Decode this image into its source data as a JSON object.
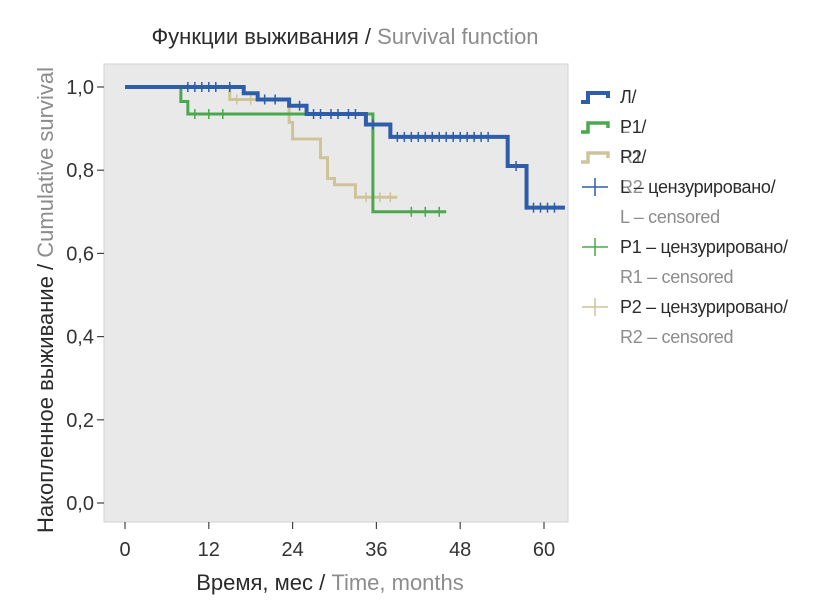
{
  "title": {
    "main": "Функции выживания / ",
    "secondary": "Survival function"
  },
  "x_axis_label": {
    "main": "Время, мес / ",
    "secondary": "Time, months"
  },
  "y_axis_label": {
    "main": "Накопленное выживание / ",
    "secondary": "Cumulative survival"
  },
  "legend": [
    {
      "main": "Л/",
      "secondary": "L",
      "color": "#2e5da9",
      "kind": "line"
    },
    {
      "main": "Р1/",
      "secondary": "R1",
      "color": "#4aa84d",
      "kind": "line"
    },
    {
      "main": "Р2/",
      "secondary": "R2",
      "color": "#cfc39a",
      "kind": "line"
    },
    {
      "main": "L – цензурировано/",
      "secondary": "L – censored",
      "color": "#2e5da9",
      "kind": "censor"
    },
    {
      "main": "P1 – цензурировано/",
      "secondary": "R1 – censored",
      "color": "#4aa84d",
      "kind": "censor"
    },
    {
      "main": "P2 – цензурировано/",
      "secondary": "R2 – censored",
      "color": "#cfc39a",
      "kind": "censor"
    }
  ],
  "chart_data": {
    "type": "line",
    "subtype": "kaplan-meier step",
    "title": "Функции выживания / Survival function",
    "xlabel": "Время, мес / Time, months",
    "ylabel": "Накопленное выживание / Cumulative survival",
    "xlim": [
      -2,
      63
    ],
    "ylim": [
      -0.04,
      1.05
    ],
    "xticks": [
      0,
      12,
      24,
      36,
      48,
      60
    ],
    "xtick_labels": [
      "0",
      "12",
      "24",
      "36",
      "48",
      "60"
    ],
    "yticks": [
      0.0,
      0.2,
      0.4,
      0.6,
      0.8,
      1.0
    ],
    "ytick_labels": [
      "0,0",
      "0,2",
      "0,4",
      "0,6",
      "0,8",
      "1,0"
    ],
    "grid": false,
    "background": "#e9e9e9",
    "legend_position": "right",
    "series": [
      {
        "name": "Л/L",
        "color": "#2e5da9",
        "width": 4,
        "steps": [
          [
            0,
            1.0
          ],
          [
            17,
            0.985
          ],
          [
            19,
            0.97
          ],
          [
            23.5,
            0.955
          ],
          [
            26,
            0.935
          ],
          [
            34.5,
            0.91
          ],
          [
            38,
            0.88
          ],
          [
            54.8,
            0.81
          ],
          [
            57.5,
            0.71
          ],
          [
            63,
            0.71
          ]
        ],
        "censored": [
          [
            9,
            1.0
          ],
          [
            10,
            1.0
          ],
          [
            11,
            1.0
          ],
          [
            12,
            1.0
          ],
          [
            13,
            1.0
          ],
          [
            15,
            1.0
          ],
          [
            20,
            0.97
          ],
          [
            21.5,
            0.97
          ],
          [
            25,
            0.955
          ],
          [
            27,
            0.935
          ],
          [
            28,
            0.935
          ],
          [
            29.5,
            0.935
          ],
          [
            30.5,
            0.935
          ],
          [
            32,
            0.935
          ],
          [
            33,
            0.935
          ],
          [
            35.5,
            0.91
          ],
          [
            39,
            0.88
          ],
          [
            40,
            0.88
          ],
          [
            41,
            0.88
          ],
          [
            42,
            0.88
          ],
          [
            43,
            0.88
          ],
          [
            44,
            0.88
          ],
          [
            45,
            0.88
          ],
          [
            46,
            0.88
          ],
          [
            47,
            0.88
          ],
          [
            48,
            0.88
          ],
          [
            49,
            0.88
          ],
          [
            50,
            0.88
          ],
          [
            51,
            0.88
          ],
          [
            52,
            0.88
          ],
          [
            56,
            0.81
          ],
          [
            58.5,
            0.71
          ],
          [
            59.5,
            0.71
          ],
          [
            60.5,
            0.71
          ],
          [
            61.5,
            0.71
          ]
        ]
      },
      {
        "name": "Р1/R1",
        "color": "#4aa84d",
        "width": 3,
        "steps": [
          [
            0,
            1.0
          ],
          [
            8,
            0.965
          ],
          [
            9,
            0.935
          ],
          [
            35.5,
            0.7
          ],
          [
            46,
            0.7
          ]
        ],
        "censored": [
          [
            10,
            0.935
          ],
          [
            12,
            0.935
          ],
          [
            14,
            0.935
          ],
          [
            41,
            0.7
          ],
          [
            43,
            0.7
          ],
          [
            45,
            0.7
          ]
        ]
      },
      {
        "name": "Р2/R2",
        "color": "#cfc39a",
        "width": 3,
        "steps": [
          [
            0,
            1.0
          ],
          [
            15,
            0.97
          ],
          [
            23.5,
            0.915
          ],
          [
            24,
            0.875
          ],
          [
            28,
            0.83
          ],
          [
            29,
            0.78
          ],
          [
            30,
            0.765
          ],
          [
            33,
            0.735
          ],
          [
            39,
            0.735
          ]
        ],
        "censored": [
          [
            16,
            0.97
          ],
          [
            18,
            0.97
          ],
          [
            20,
            0.97
          ],
          [
            34.5,
            0.735
          ],
          [
            36.5,
            0.735
          ],
          [
            38,
            0.735
          ]
        ]
      }
    ]
  }
}
